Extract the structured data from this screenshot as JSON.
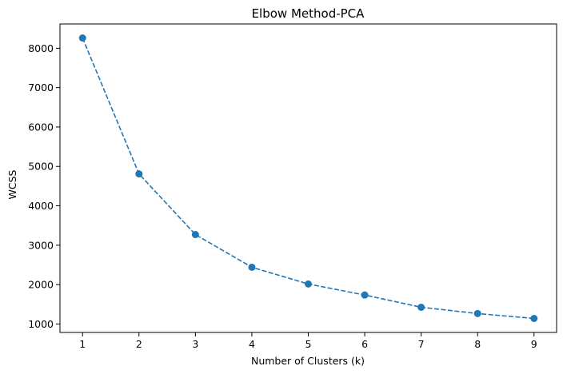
{
  "chart_data": {
    "type": "line",
    "title": "Elbow Method-PCA",
    "xlabel": "Number of Clusters (k)",
    "ylabel": "WCSS",
    "x": [
      1,
      2,
      3,
      4,
      5,
      6,
      7,
      8,
      9
    ],
    "series": [
      {
        "values": [
          8260,
          4810,
          3270,
          2440,
          2015,
          1735,
          1425,
          1265,
          1140
        ]
      }
    ],
    "xticks": [
      1,
      2,
      3,
      4,
      5,
      6,
      7,
      8,
      9
    ],
    "yticks": [
      1000,
      2000,
      3000,
      4000,
      5000,
      6000,
      7000,
      8000
    ],
    "xlim": [
      0.6,
      9.4
    ],
    "ylim": [
      785,
      8616
    ],
    "grid": false,
    "legend": "none",
    "line_style": "dashed",
    "marker": "circle",
    "color": "#1f77b4"
  }
}
